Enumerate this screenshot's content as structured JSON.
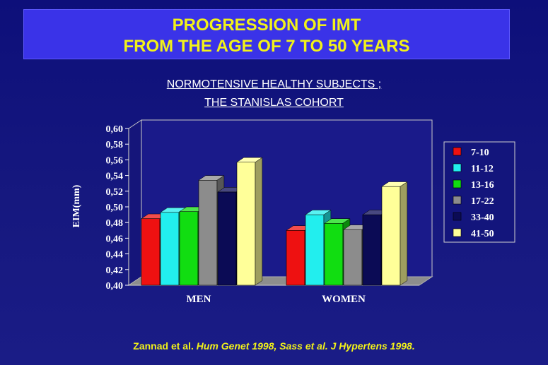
{
  "slide": {
    "title_line1": "PROGRESSION OF IMT",
    "title_line2": "FROM THE AGE OF 7 TO 50 YEARS",
    "subtitle_line1": "NORMOTENSIVE HEALTHY SUBJECTS ;",
    "subtitle_line2": "THE STANISLAS COHORT",
    "footer": {
      "part1": "Zannad et al. ",
      "part2": "Hum Genet 1998, Sass et al. J Hypertens 1998."
    }
  },
  "colors": {
    "background": "#13157c",
    "title_box": "#3a33e8",
    "title_text": "#f2f219",
    "plot_back": "#1a1a8a",
    "floor": "#8d8d8d"
  },
  "chart_data": {
    "type": "bar",
    "title": "",
    "xlabel": "",
    "ylabel": "EIM(mm)",
    "ylim": [
      0.4,
      0.6
    ],
    "yticks": [
      "0,40",
      "0,42",
      "0,44",
      "0,46",
      "0,48",
      "0,50",
      "0,52",
      "0,54",
      "0,56",
      "0,58",
      "0,60"
    ],
    "categories": [
      "MEN",
      "WOMEN"
    ],
    "legend_position": "right",
    "three_d": true,
    "series": [
      {
        "name": "7-10",
        "color": "#ee1111",
        "values": [
          0.485,
          0.47
        ]
      },
      {
        "name": "11-12",
        "color": "#22eeee",
        "values": [
          0.493,
          0.49
        ]
      },
      {
        "name": "13-16",
        "color": "#11dd11",
        "values": [
          0.494,
          0.479
        ]
      },
      {
        "name": "17-22",
        "color": "#8c8c8c",
        "values": [
          0.534,
          0.471
        ]
      },
      {
        "name": "33-40",
        "color": "#0b0b55",
        "values": [
          0.519,
          0.49
        ]
      },
      {
        "name": "41-50",
        "color": "#ffff99",
        "values": [
          0.557,
          0.526
        ]
      }
    ]
  }
}
